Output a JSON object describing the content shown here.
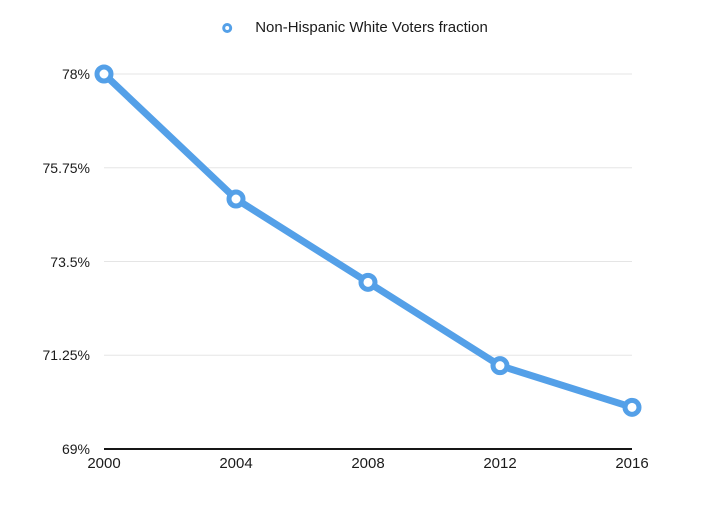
{
  "chart_data": {
    "type": "line",
    "title": "",
    "legend": [
      "Non-Hispanic White Voters fraction"
    ],
    "legend_position": "top-center",
    "marker_style": "open-circle",
    "categories": [
      "2000",
      "2004",
      "2008",
      "2012",
      "2016"
    ],
    "x": [
      2000,
      2004,
      2008,
      2012,
      2016
    ],
    "series": [
      {
        "name": "Non-Hispanic White Voters fraction",
        "values": [
          78,
          75,
          73,
          71,
          70
        ]
      }
    ],
    "xlabel": "",
    "ylabel": "",
    "ylim": [
      69,
      78
    ],
    "yticks": {
      "values": [
        69,
        71.25,
        73.5,
        75.75,
        78
      ],
      "labels": [
        "69%",
        "71.25%",
        "73.5%",
        "75.75%",
        "78%"
      ]
    },
    "grid": true,
    "colors": {
      "line": "#54a0e8",
      "marker_ring": "#54a0e8",
      "marker_fill": "#ffffff",
      "grid": "#e5e5e5",
      "axis": "#161616",
      "text": "#1b1b1b"
    }
  }
}
